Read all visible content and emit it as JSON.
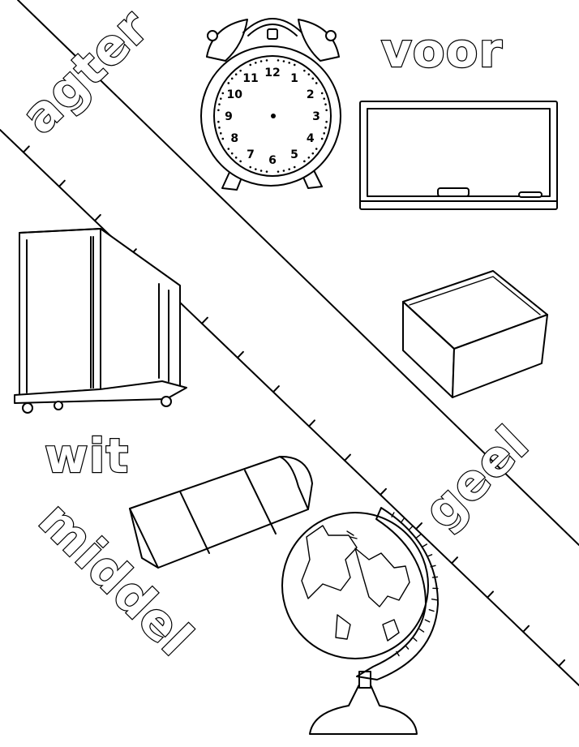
{
  "words": {
    "agter": "agter",
    "voor": "voor",
    "wit": "wit",
    "geel": "geel",
    "middel": "middel"
  },
  "clock": {
    "numerals": [
      "12",
      "1",
      "2",
      "3",
      "4",
      "5",
      "6",
      "7",
      "8",
      "9",
      "10",
      "11"
    ]
  }
}
